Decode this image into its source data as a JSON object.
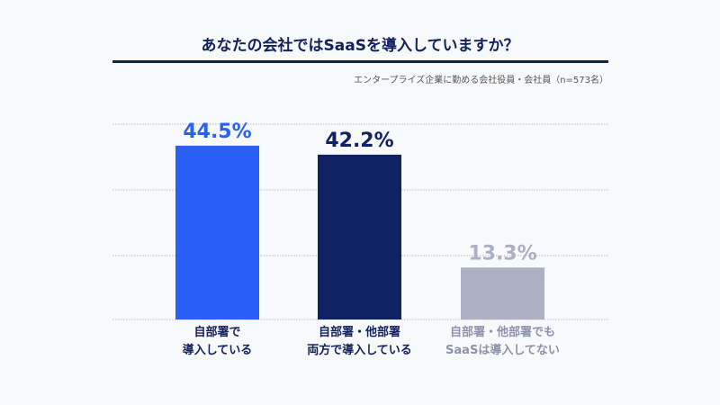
{
  "chart_data": {
    "type": "bar",
    "title": "あなたの会社ではSaaSを導入していますか？",
    "subtitle": "エンタープライズ企業に勤める会社役員・会社員（n=573名）",
    "categories": [
      [
        "自部署で",
        "導入している"
      ],
      [
        "自部署・他部署",
        "両方で導入している"
      ],
      [
        "自部署・他部署でも",
        "SaaSは導入してない"
      ]
    ],
    "values": [
      44.5,
      42.2,
      13.3
    ],
    "value_labels": [
      "44.5%",
      "42.2%",
      "13.3%"
    ],
    "colors": [
      "#2a60f7",
      "#102264",
      "#abb0c2"
    ],
    "label_colors": [
      "#2a60f7",
      "#102264",
      "#abb0c2"
    ],
    "category_label_colors": [
      "#13205e",
      "#13205e",
      "#8e93ab"
    ],
    "ylim": [
      0,
      50
    ],
    "grid": true,
    "xlabel": "",
    "ylabel": ""
  }
}
